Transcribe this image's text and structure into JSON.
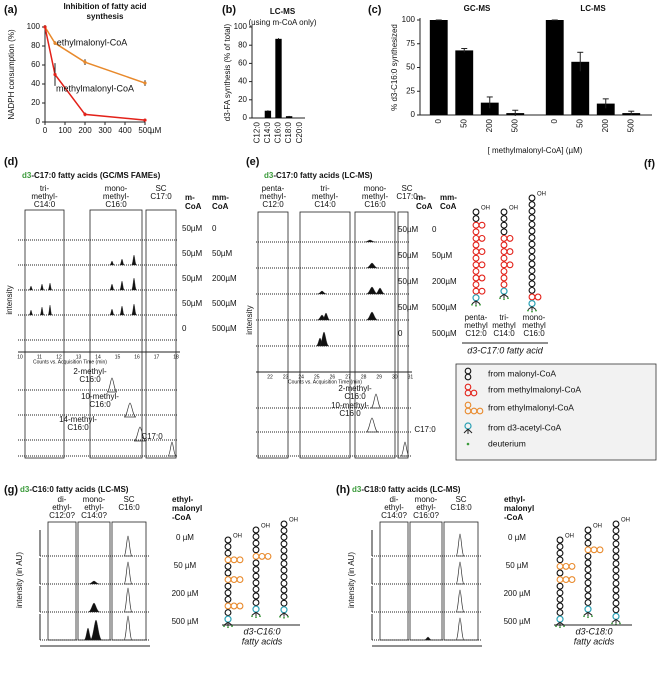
{
  "panel_labels": [
    "(a)",
    "(b)",
    "(c)",
    "(d)",
    "(e)",
    "(f)",
    "(g)",
    "(h)"
  ],
  "chart_data": [
    {
      "type": "line",
      "title": [
        "Inhibition of fatty acid",
        "synthesis"
      ],
      "ylabel": "NADPH consumption (%)",
      "x_unit": "µM",
      "x": [
        0,
        50,
        200,
        500
      ],
      "xlim": [
        0,
        500
      ],
      "xticks": [
        0,
        100,
        200,
        300,
        400,
        500
      ],
      "ylim": [
        0,
        100
      ],
      "yticks": [
        0,
        20,
        40,
        60,
        80,
        100
      ],
      "series": [
        {
          "name": "ethylmalonyl-CoA",
          "color": "#e8892b",
          "values": [
            100,
            83,
            63,
            41
          ],
          "errors": [
            0,
            2,
            3,
            3
          ]
        },
        {
          "name": "methylmalonyl-CoA",
          "color": "#e32119",
          "values": [
            100,
            50,
            8,
            2
          ],
          "errors": [
            0,
            12,
            2,
            1
          ]
        }
      ]
    },
    {
      "type": "bar",
      "title": "LC-MS",
      "subtitle": "(using m-CoA only)",
      "ylabel": "d3-FA synthesis (% of total)",
      "categories": [
        "C12:0",
        "C14:0",
        "C16:0",
        "C18:0",
        "C20:0"
      ],
      "values": [
        0,
        8,
        87,
        2,
        0
      ],
      "errors": [
        0,
        0.5,
        0.8,
        0.3,
        0
      ],
      "color": "#000000",
      "ylim": [
        0,
        100
      ],
      "yticks": [
        0,
        20,
        40,
        60,
        80,
        100
      ]
    },
    {
      "type": "grouped_bar",
      "ylabel": "% d3-C16:0 synthesized",
      "xlabel": "[ methylmalonyl-CoA]  (µM)",
      "color": "#000000",
      "ylim": [
        0,
        100
      ],
      "yticks": [
        0,
        25,
        50,
        75,
        100
      ],
      "groups": [
        {
          "name": "GC-MS",
          "categories": [
            "0",
            "50",
            "200",
            "500"
          ],
          "values": [
            100,
            68,
            13,
            2
          ],
          "errors": [
            0,
            2,
            6,
            3
          ]
        },
        {
          "name": "LC-MS",
          "categories": [
            "0",
            "50",
            "200",
            "500"
          ],
          "values": [
            100,
            56,
            12,
            2
          ],
          "errors": [
            0,
            10,
            5,
            2
          ]
        }
      ]
    }
  ],
  "panel_d": {
    "title": [
      "d3",
      "-C17:0 fatty acids (GC/MS FAMEs)"
    ],
    "columns": [
      [
        "tri-",
        "methyl-",
        "C14:0"
      ],
      [
        "mono-",
        "methyl-",
        "C16:0"
      ],
      [
        "SC",
        "C17:0"
      ]
    ],
    "row_headers": [
      [
        "m-",
        "CoA"
      ],
      [
        "mm-",
        "CoA"
      ]
    ],
    "rows": [
      [
        "50µM",
        "0"
      ],
      [
        "50µM",
        "50µM"
      ],
      [
        "50µM",
        "200µM"
      ],
      [
        "50µM",
        "500µM"
      ],
      [
        "0",
        "500µM"
      ]
    ],
    "ylabel": "intensity",
    "xticks": [
      "10",
      "11",
      "12",
      "13",
      "14",
      "15",
      "16",
      "17",
      "18"
    ],
    "xlabel": "Counts vs. Acquisition Time (min)",
    "standards": [
      [
        "2-methyl-",
        "C16:0"
      ],
      [
        "10-methyl-",
        "C16:0"
      ],
      [
        "14-methyl-",
        "C16:0"
      ],
      [
        "C17:0"
      ]
    ]
  },
  "panel_e": {
    "title": [
      "d3",
      "-C17:0 fatty acids (LC-MS)"
    ],
    "columns": [
      [
        "penta-",
        "methyl-",
        "C12:0"
      ],
      [
        "tri-",
        "methyl-",
        "C14:0"
      ],
      [
        "mono-",
        "methyl-",
        "C16:0"
      ],
      [
        "SC",
        "C17:0"
      ]
    ],
    "row_headers": [
      [
        "m-",
        "CoA"
      ],
      [
        "mm-",
        "CoA"
      ]
    ],
    "rows": [
      [
        "50µM",
        "0"
      ],
      [
        "50µM",
        "50µM"
      ],
      [
        "50µM",
        "200µM"
      ],
      [
        "50µM",
        "500µM"
      ],
      [
        "0",
        "500µM"
      ]
    ],
    "ylabel": "intensity",
    "xticks": [
      "22",
      "23",
      "24",
      "25",
      "26",
      "27",
      "28",
      "29",
      "30",
      "31"
    ],
    "xlabel": "Counts vs. Acquisition Time (min)",
    "standards": [
      [
        "2-methyl-",
        "C16:0"
      ],
      [
        "10-methyl-",
        "C16:0"
      ],
      [
        "C17:0"
      ]
    ]
  },
  "panel_f": {
    "hydroxyl": "OH",
    "labels": [
      [
        "penta-",
        "methyl",
        "C12:0"
      ],
      [
        "tri-",
        "methyl",
        "C14:0"
      ],
      [
        "mono-",
        "methyl",
        "C16:0"
      ]
    ],
    "caption": "d3-C17:0 fatty acid",
    "legend": [
      {
        "label": "from malonyl-CoA",
        "color": "#111111"
      },
      {
        "label": "from methylmalonyl-CoA",
        "color": "#e32119"
      },
      {
        "label": "from ethylmalonyl-CoA",
        "color": "#e8892b"
      },
      {
        "label": "from d3-acetyl-CoA",
        "color": "#2aa0b4"
      },
      {
        "label": "deuterium",
        "color": "#3a9a3a"
      }
    ]
  },
  "panel_g": {
    "title": [
      "d3",
      "-C16:0 fatty acids (LC-MS)"
    ],
    "columns": [
      [
        "di-",
        "ethyl-",
        "C12:0?"
      ],
      [
        "mono-",
        "ethyl-",
        "C14:0?"
      ],
      [
        "SC",
        "C16:0"
      ]
    ],
    "row_header": [
      "ethyl-",
      "malonyl",
      "-CoA"
    ],
    "rows": [
      "0 µM",
      "50 µM",
      "200 µM",
      "500 µM"
    ],
    "ylabel": "intensity (in AU)",
    "caption": [
      "d3-C16:0",
      "fatty acids"
    ]
  },
  "panel_h": {
    "title": [
      "d3",
      "-C18:0 fatty acids (LC-MS)"
    ],
    "columns": [
      [
        "di-",
        "ethyl-",
        "C14:0?"
      ],
      [
        "mono-",
        "ethyl-",
        "C16:0?"
      ],
      [
        "SC",
        "C18:0"
      ]
    ],
    "row_header": [
      "ethyl-",
      "malonyl",
      "-CoA"
    ],
    "rows": [
      "0 µM",
      "50 µM",
      "200 µM",
      "500 µM"
    ],
    "ylabel": "intensity (in AU)",
    "caption": [
      "d3-C18:0",
      "fatty acids"
    ]
  }
}
